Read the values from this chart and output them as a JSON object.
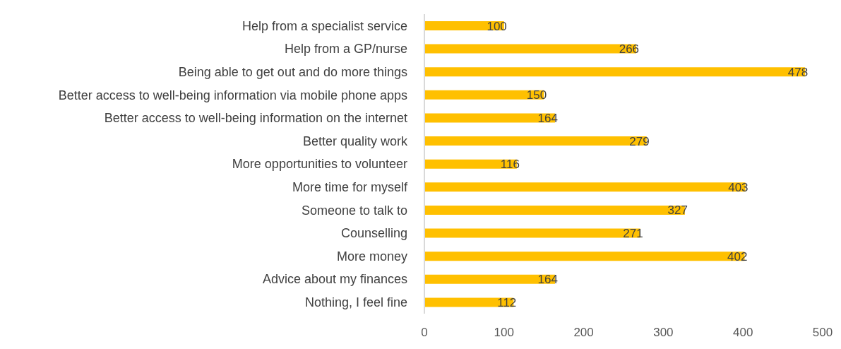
{
  "chart_data": {
    "type": "bar",
    "orientation": "horizontal",
    "categories": [
      "Help from a specialist service",
      "Help from a GP/nurse",
      "Being able to get out and do more things",
      "Better access to well-being information via mobile phone apps",
      "Better access to well-being information on the internet",
      "Better quality work",
      "More opportunities to volunteer",
      "More time for myself",
      "Someone to talk to",
      "Counselling",
      "More money",
      "Advice about my finances",
      "Nothing, I feel fine"
    ],
    "values": [
      100,
      266,
      478,
      150,
      164,
      279,
      116,
      403,
      327,
      271,
      402,
      164,
      112
    ],
    "color": "#ffc000",
    "xlim": [
      0,
      500
    ],
    "xticks": [
      0,
      100,
      200,
      300,
      400,
      500
    ],
    "grid": false,
    "legend": false,
    "data_labels": true
  }
}
